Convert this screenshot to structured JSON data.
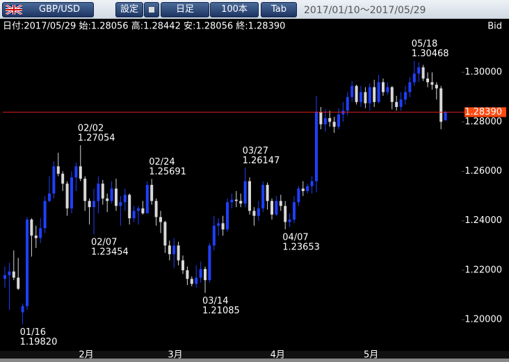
{
  "toolbar": {
    "pair": "GBP/USD",
    "settings": "設定",
    "period": "日足",
    "count": "100本",
    "tab": "Tab",
    "range": "2017/01/10～2017/05/29"
  },
  "chart_data": {
    "type": "candlestick",
    "info": "日付:2017/05/29 始:1.28056 高:1.28442 安:1.28056 終:1.28390",
    "price_type": "Bid",
    "categories": [
      null,
      null,
      null,
      null,
      null,
      null,
      null,
      null,
      null,
      null,
      null,
      null,
      null,
      null,
      null,
      null,
      "2月",
      null,
      null,
      null,
      null,
      null,
      null,
      null,
      null,
      null,
      null,
      null,
      null,
      null,
      null,
      null,
      null,
      null,
      null,
      null,
      "3月",
      null,
      null,
      null,
      null,
      null,
      null,
      null,
      null,
      null,
      null,
      null,
      null,
      null,
      null,
      null,
      null,
      null,
      null,
      null,
      null,
      null,
      null,
      "4月",
      null,
      null,
      null,
      null,
      null,
      null,
      null,
      null,
      null,
      null,
      null,
      null,
      null,
      null,
      null,
      null,
      null,
      null,
      null,
      null,
      "5月",
      null,
      null,
      null,
      null,
      null,
      null,
      null,
      null,
      null,
      null,
      null,
      null,
      null,
      null,
      null,
      null,
      null,
      null,
      null
    ],
    "open": [
      1.2165,
      1.218,
      1.2195,
      1.217,
      1.203,
      1.2055,
      1.2405,
      1.234,
      1.233,
      1.237,
      1.248,
      1.251,
      1.262,
      1.259,
      1.255,
      1.245,
      1.2575,
      1.262,
      1.257,
      1.248,
      1.2455,
      1.248,
      1.255,
      1.249,
      1.248,
      1.253,
      1.246,
      1.2475,
      1.2505,
      1.241,
      1.244,
      1.245,
      1.243,
      1.2545,
      1.248,
      1.2415,
      1.2395,
      1.23,
      1.2265,
      1.23,
      1.224,
      1.22,
      1.2165,
      1.2145,
      1.217,
      1.2205,
      1.216,
      1.23,
      1.238,
      1.239,
      1.2365,
      1.2475,
      1.2485,
      1.248,
      1.247,
      1.256,
      1.244,
      1.242,
      1.245,
      1.2545,
      1.248,
      1.2425,
      1.248,
      1.246,
      1.2395,
      1.2405,
      1.2475,
      1.253,
      1.252,
      1.254,
      1.256,
      1.284,
      1.279,
      1.2815,
      1.28,
      1.278,
      1.283,
      1.2845,
      1.29,
      1.2945,
      1.288,
      1.292,
      1.2875,
      1.294,
      1.288,
      1.296,
      1.292,
      1.294,
      1.288,
      1.286,
      1.289,
      1.292,
      1.296,
      1.2995,
      1.302,
      1.2975,
      1.296,
      1.295,
      1.2935,
      1.28056
    ],
    "high": [
      1.2215,
      1.223,
      1.228,
      1.225,
      1.2065,
      1.2415,
      1.241,
      1.238,
      1.241,
      1.25,
      1.258,
      1.264,
      1.2675,
      1.26,
      1.256,
      1.26,
      1.2635,
      1.27054,
      1.258,
      1.249,
      1.253,
      1.258,
      1.2565,
      1.251,
      1.256,
      1.257,
      1.25,
      1.253,
      1.251,
      1.246,
      1.246,
      1.248,
      1.256,
      1.25691,
      1.249,
      1.244,
      1.24,
      1.232,
      1.233,
      1.2315,
      1.226,
      1.2215,
      1.2175,
      1.222,
      1.2235,
      1.2215,
      1.231,
      1.242,
      1.241,
      1.242,
      1.249,
      1.251,
      1.252,
      1.251,
      1.26147,
      1.2575,
      1.2455,
      1.248,
      1.256,
      1.2555,
      1.249,
      1.25,
      1.2505,
      1.248,
      1.243,
      1.25,
      1.254,
      1.256,
      1.255,
      1.258,
      1.2905,
      1.286,
      1.285,
      1.2845,
      1.282,
      1.2855,
      1.288,
      1.292,
      1.2965,
      1.295,
      1.2945,
      1.294,
      1.2955,
      1.297,
      1.299,
      1.2975,
      1.296,
      1.2945,
      1.2905,
      1.292,
      1.2945,
      1.298,
      1.30468,
      1.304,
      1.303,
      1.3,
      1.3,
      1.296,
      1.2945,
      1.28442
    ],
    "low": [
      1.213,
      1.204,
      1.216,
      1.212,
      1.1982,
      1.204,
      1.2255,
      1.229,
      1.231,
      1.235,
      1.2475,
      1.249,
      1.258,
      1.252,
      1.242,
      1.243,
      1.252,
      1.256,
      1.244,
      1.2385,
      1.23454,
      1.243,
      1.2465,
      1.2435,
      1.247,
      1.244,
      1.238,
      1.244,
      1.2385,
      1.2395,
      1.2385,
      1.2425,
      1.243,
      1.2465,
      1.238,
      1.235,
      1.227,
      1.224,
      1.221,
      1.222,
      1.2185,
      1.214,
      1.2135,
      1.213,
      1.215,
      1.21085,
      1.215,
      1.228,
      1.234,
      1.234,
      1.2355,
      1.245,
      1.2455,
      1.2455,
      1.2455,
      1.2425,
      1.238,
      1.24,
      1.2435,
      1.2445,
      1.2405,
      1.242,
      1.244,
      1.23653,
      1.2375,
      1.239,
      1.246,
      1.25,
      1.251,
      1.251,
      1.2515,
      1.277,
      1.276,
      1.278,
      1.2755,
      1.277,
      1.28,
      1.2825,
      1.288,
      1.287,
      1.286,
      1.2855,
      1.2845,
      1.286,
      1.2875,
      1.2905,
      1.291,
      1.285,
      1.2845,
      1.2845,
      1.287,
      1.29,
      1.2945,
      1.296,
      1.2965,
      1.294,
      1.293,
      1.289,
      1.277,
      1.28056
    ],
    "close": [
      1.218,
      1.2195,
      1.217,
      1.2125,
      1.2055,
      1.2405,
      1.234,
      1.233,
      1.237,
      1.248,
      1.251,
      1.262,
      1.259,
      1.255,
      1.245,
      1.2575,
      1.262,
      1.257,
      1.248,
      1.2455,
      1.248,
      1.255,
      1.249,
      1.248,
      1.253,
      1.246,
      1.2475,
      1.2505,
      1.241,
      1.244,
      1.245,
      1.243,
      1.2545,
      1.248,
      1.2415,
      1.2395,
      1.23,
      1.2265,
      1.23,
      1.224,
      1.22,
      1.2165,
      1.2145,
      1.217,
      1.2205,
      1.216,
      1.23,
      1.238,
      1.239,
      1.2365,
      1.2475,
      1.2485,
      1.248,
      1.247,
      1.256,
      1.244,
      1.242,
      1.245,
      1.2545,
      1.248,
      1.2425,
      1.248,
      1.246,
      1.2395,
      1.2405,
      1.2475,
      1.253,
      1.252,
      1.254,
      1.256,
      1.284,
      1.279,
      1.2815,
      1.28,
      1.278,
      1.283,
      1.2845,
      1.29,
      1.2945,
      1.288,
      1.292,
      1.2875,
      1.294,
      1.288,
      1.296,
      1.292,
      1.294,
      1.288,
      1.286,
      1.289,
      1.292,
      1.296,
      1.2995,
      1.302,
      1.2975,
      1.296,
      1.295,
      1.2935,
      1.28,
      1.2839
    ],
    "up_color": "#1f3fff",
    "down_color": "#d8d8d8",
    "price_line_color": "#e02020",
    "price_label": "1.28390",
    "price_label_color": "#ff4a10",
    "ylim": [
      1.1874,
      1.3166
    ],
    "yticks": [
      {
        "value": 1.2,
        "label": "1.20000"
      },
      {
        "value": 1.22,
        "label": "1.22000"
      },
      {
        "value": 1.24,
        "label": "1.24000"
      },
      {
        "value": 1.26,
        "label": "1.26000"
      },
      {
        "value": 1.28,
        "label": "1.28000"
      },
      {
        "value": 1.3,
        "label": "1.30000"
      }
    ],
    "annotations": [
      {
        "date": "01/16",
        "value": 1.1982,
        "label": "1.19820"
      },
      {
        "date": "02/02",
        "value": 1.27054,
        "label": "1.27054"
      },
      {
        "date": "02/07",
        "value": 1.23454,
        "label": "1.23454"
      },
      {
        "date": "02/24",
        "value": 1.25691,
        "label": "1.25691"
      },
      {
        "date": "03/14",
        "value": 1.21085,
        "label": "1.21085"
      },
      {
        "date": "03/27",
        "value": 1.26147,
        "label": "1.26147"
      },
      {
        "date": "04/07",
        "value": 1.23653,
        "label": "1.23653"
      },
      {
        "date": "05/18",
        "value": 1.30468,
        "label": "1.30468"
      }
    ]
  }
}
